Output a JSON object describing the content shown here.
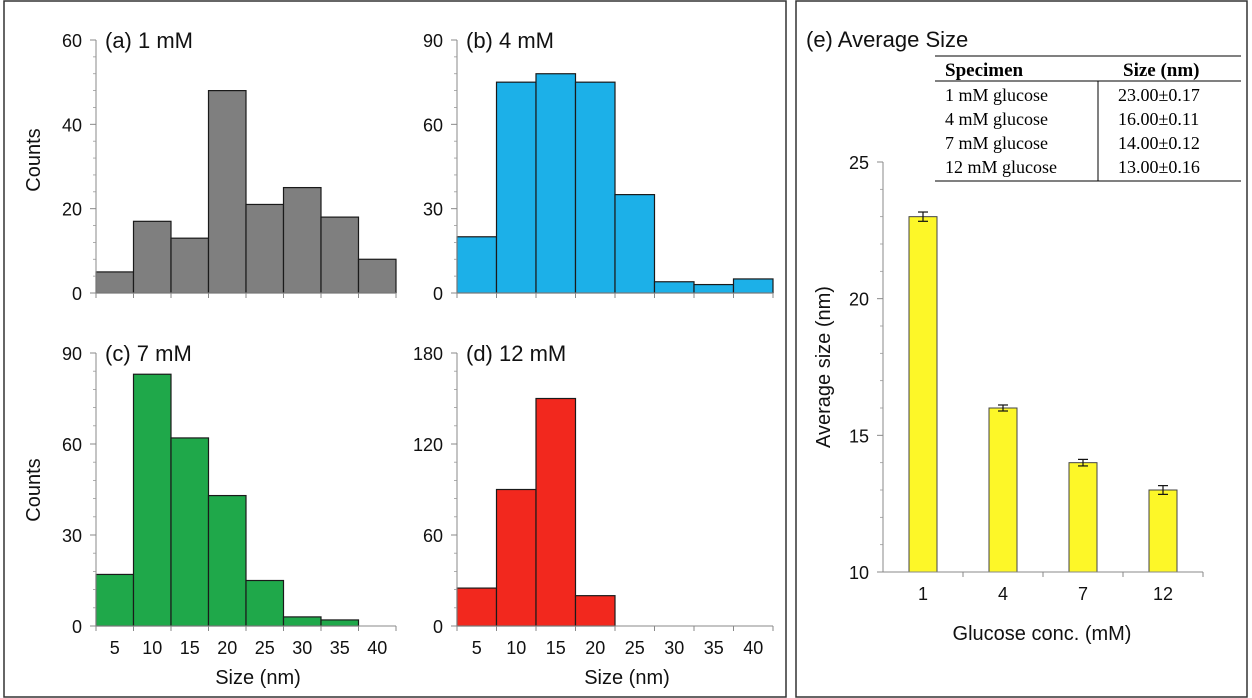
{
  "chart_data": [
    {
      "id": "a",
      "type": "bar",
      "title": "(a) 1 mM",
      "ylabel": "Counts",
      "xlabel": "",
      "ylim": [
        0,
        60
      ],
      "yticks": [
        0,
        20,
        40,
        60
      ],
      "x_tick_labels": [],
      "bin_edges": [
        2.5,
        7.5,
        12.5,
        17.5,
        22.5,
        27.5,
        32.5,
        37.5,
        42.5
      ],
      "values": [
        5,
        17,
        13,
        48,
        21,
        25,
        18,
        8
      ],
      "color": "#7f7f7f"
    },
    {
      "id": "b",
      "type": "bar",
      "title": "(b) 4 mM",
      "ylabel": "",
      "xlabel": "",
      "ylim": [
        0,
        90
      ],
      "yticks": [
        0,
        30,
        60,
        90
      ],
      "x_tick_labels": [],
      "bin_edges": [
        2.5,
        7.5,
        12.5,
        17.5,
        22.5,
        27.5,
        32.5,
        37.5,
        42.5
      ],
      "values": [
        20,
        75,
        78,
        75,
        35,
        4,
        3,
        5
      ],
      "color": "#1cb0e8"
    },
    {
      "id": "c",
      "type": "bar",
      "title": "(c) 7 mM",
      "ylabel": "Counts",
      "xlabel": "Size (nm)",
      "ylim": [
        0,
        90
      ],
      "yticks": [
        0,
        30,
        60,
        90
      ],
      "x_tick_labels": [
        "5",
        "10",
        "15",
        "20",
        "25",
        "30",
        "35",
        "40"
      ],
      "bin_edges": [
        2.5,
        7.5,
        12.5,
        17.5,
        22.5,
        27.5,
        32.5,
        37.5,
        42.5
      ],
      "values": [
        17,
        83,
        62,
        43,
        15,
        3,
        2,
        0
      ],
      "color": "#1fa84a"
    },
    {
      "id": "d",
      "type": "bar",
      "title": "(d) 12 mM",
      "ylabel": "",
      "xlabel": "Size (nm)",
      "ylim": [
        0,
        180
      ],
      "yticks": [
        0,
        60,
        120,
        180
      ],
      "x_tick_labels": [
        "5",
        "10",
        "15",
        "20",
        "25",
        "30",
        "35",
        "40"
      ],
      "bin_edges": [
        2.5,
        7.5,
        12.5,
        17.5,
        22.5,
        27.5,
        32.5,
        37.5,
        42.5
      ],
      "values": [
        25,
        90,
        150,
        20,
        0,
        0,
        0,
        0
      ],
      "color": "#f2281e"
    },
    {
      "id": "e",
      "type": "bar",
      "title": "(e) Average Size",
      "ylabel": "Average size (nm)",
      "xlabel": "Glucose conc. (mM)",
      "ylim": [
        10,
        25
      ],
      "yticks": [
        10,
        15,
        20,
        25
      ],
      "categories": [
        "1",
        "4",
        "7",
        "12"
      ],
      "values": [
        23.0,
        16.0,
        14.0,
        13.0
      ],
      "errors": [
        0.17,
        0.11,
        0.12,
        0.16
      ],
      "color": "#fdf728"
    }
  ],
  "table": {
    "headers": [
      "Specimen",
      "Size (nm)"
    ],
    "rows": [
      [
        "1 mM glucose",
        "23.00±0.17"
      ],
      [
        "4 mM glucose",
        "16.00±0.11"
      ],
      [
        "7 mM glucose",
        "14.00±0.12"
      ],
      [
        "12 mM glucose",
        "13.00±0.16"
      ]
    ]
  }
}
